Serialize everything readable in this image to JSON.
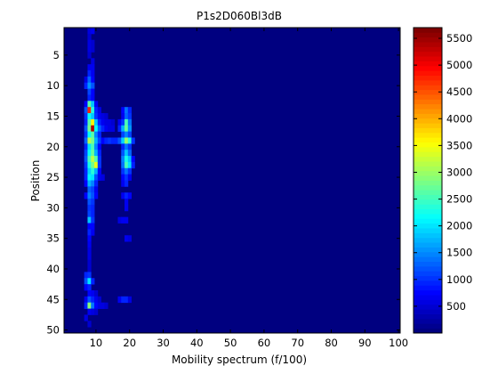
{
  "chart_data": {
    "type": "heatmap",
    "title": "P1s2D060Bl3dB",
    "xlabel": "Mobility spectrum (f/100)",
    "ylabel": "Position",
    "x_range": [
      1,
      100
    ],
    "y_range": [
      1,
      50
    ],
    "x_ticks": [
      10,
      20,
      30,
      40,
      50,
      60,
      70,
      80,
      90,
      100
    ],
    "y_ticks": [
      5,
      10,
      15,
      20,
      25,
      30,
      35,
      40,
      45,
      50
    ],
    "y_reversed": true,
    "colormap": "jet",
    "background_value": 60,
    "colorbar": {
      "range": [
        0,
        5700
      ],
      "ticks": [
        500,
        1000,
        1500,
        2000,
        2500,
        3000,
        3500,
        4000,
        4500,
        5000,
        5500
      ]
    },
    "cells": [
      [
        8,
        1,
        600
      ],
      [
        9,
        1,
        700
      ],
      [
        8,
        2,
        500
      ],
      [
        8,
        3,
        550
      ],
      [
        9,
        3,
        450
      ],
      [
        8,
        4,
        600
      ],
      [
        9,
        4,
        500
      ],
      [
        8,
        5,
        500
      ],
      [
        9,
        6,
        600
      ],
      [
        8,
        7,
        700
      ],
      [
        9,
        7,
        650
      ],
      [
        8,
        8,
        900
      ],
      [
        9,
        8,
        700
      ],
      [
        7,
        9,
        600
      ],
      [
        8,
        9,
        1300
      ],
      [
        9,
        9,
        800
      ],
      [
        7,
        10,
        900
      ],
      [
        8,
        10,
        1600
      ],
      [
        9,
        10,
        1200
      ],
      [
        8,
        11,
        1100
      ],
      [
        9,
        11,
        800
      ],
      [
        8,
        12,
        900
      ],
      [
        9,
        12,
        800
      ],
      [
        7,
        13,
        800
      ],
      [
        8,
        13,
        2600
      ],
      [
        9,
        13,
        1800
      ],
      [
        10,
        13,
        700
      ],
      [
        7,
        14,
        1200
      ],
      [
        8,
        14,
        4800
      ],
      [
        9,
        14,
        2400
      ],
      [
        10,
        14,
        900
      ],
      [
        11,
        14,
        600
      ],
      [
        18,
        14,
        800
      ],
      [
        19,
        14,
        1400
      ],
      [
        20,
        14,
        900
      ],
      [
        7,
        15,
        1000
      ],
      [
        8,
        15,
        2200
      ],
      [
        9,
        15,
        1800
      ],
      [
        10,
        15,
        1000
      ],
      [
        11,
        15,
        700
      ],
      [
        12,
        15,
        600
      ],
      [
        13,
        15,
        500
      ],
      [
        18,
        15,
        700
      ],
      [
        19,
        15,
        1300
      ],
      [
        20,
        15,
        1000
      ],
      [
        7,
        16,
        900
      ],
      [
        8,
        16,
        2600
      ],
      [
        9,
        16,
        3600
      ],
      [
        10,
        16,
        1800
      ],
      [
        11,
        16,
        900
      ],
      [
        12,
        16,
        700
      ],
      [
        13,
        16,
        600
      ],
      [
        14,
        16,
        600
      ],
      [
        15,
        16,
        500
      ],
      [
        17,
        16,
        700
      ],
      [
        18,
        16,
        1000
      ],
      [
        19,
        16,
        2500
      ],
      [
        20,
        16,
        1400
      ],
      [
        7,
        17,
        1200
      ],
      [
        8,
        17,
        2800
      ],
      [
        9,
        17,
        5400
      ],
      [
        10,
        17,
        2200
      ],
      [
        11,
        17,
        1300
      ],
      [
        12,
        17,
        900
      ],
      [
        13,
        17,
        700
      ],
      [
        14,
        17,
        600
      ],
      [
        15,
        17,
        600
      ],
      [
        17,
        17,
        900
      ],
      [
        18,
        17,
        1700
      ],
      [
        19,
        17,
        2700
      ],
      [
        20,
        17,
        1600
      ],
      [
        7,
        18,
        1000
      ],
      [
        8,
        18,
        2200
      ],
      [
        9,
        18,
        2600
      ],
      [
        10,
        18,
        1500
      ],
      [
        11,
        18,
        900
      ],
      [
        18,
        18,
        1100
      ],
      [
        19,
        18,
        1500
      ],
      [
        20,
        18,
        1100
      ],
      [
        7,
        19,
        1300
      ],
      [
        8,
        19,
        3200
      ],
      [
        9,
        19,
        2800
      ],
      [
        10,
        19,
        1700
      ],
      [
        11,
        19,
        1100
      ],
      [
        12,
        19,
        800
      ],
      [
        13,
        19,
        900
      ],
      [
        14,
        19,
        1000
      ],
      [
        15,
        19,
        900
      ],
      [
        16,
        19,
        900
      ],
      [
        17,
        19,
        1200
      ],
      [
        18,
        19,
        1900
      ],
      [
        19,
        19,
        3000
      ],
      [
        20,
        19,
        2400
      ],
      [
        21,
        19,
        1000
      ],
      [
        7,
        20,
        900
      ],
      [
        8,
        20,
        2000
      ],
      [
        9,
        20,
        2500
      ],
      [
        10,
        20,
        1500
      ],
      [
        11,
        20,
        800
      ],
      [
        18,
        20,
        900
      ],
      [
        19,
        20,
        1400
      ],
      [
        20,
        20,
        1000
      ],
      [
        7,
        21,
        1100
      ],
      [
        8,
        21,
        2200
      ],
      [
        9,
        21,
        2700
      ],
      [
        10,
        21,
        1700
      ],
      [
        11,
        21,
        900
      ],
      [
        18,
        21,
        1200
      ],
      [
        19,
        21,
        1800
      ],
      [
        20,
        21,
        1300
      ],
      [
        7,
        22,
        1200
      ],
      [
        8,
        22,
        2500
      ],
      [
        9,
        22,
        3200
      ],
      [
        10,
        22,
        2600
      ],
      [
        11,
        22,
        1000
      ],
      [
        18,
        22,
        1500
      ],
      [
        19,
        22,
        2300
      ],
      [
        20,
        22,
        1800
      ],
      [
        21,
        22,
        800
      ],
      [
        7,
        23,
        1000
      ],
      [
        8,
        23,
        2300
      ],
      [
        9,
        23,
        2800
      ],
      [
        10,
        23,
        3400
      ],
      [
        11,
        23,
        1000
      ],
      [
        18,
        23,
        1400
      ],
      [
        19,
        23,
        2500
      ],
      [
        20,
        23,
        2000
      ],
      [
        21,
        23,
        900
      ],
      [
        7,
        24,
        900
      ],
      [
        8,
        24,
        1900
      ],
      [
        9,
        24,
        2400
      ],
      [
        10,
        24,
        1700
      ],
      [
        11,
        24,
        800
      ],
      [
        18,
        24,
        1000
      ],
      [
        19,
        24,
        1400
      ],
      [
        20,
        24,
        1000
      ],
      [
        7,
        25,
        900
      ],
      [
        8,
        25,
        2100
      ],
      [
        9,
        25,
        2000
      ],
      [
        10,
        25,
        1200
      ],
      [
        11,
        25,
        700
      ],
      [
        12,
        25,
        600
      ],
      [
        18,
        25,
        800
      ],
      [
        19,
        25,
        1000
      ],
      [
        20,
        25,
        700
      ],
      [
        7,
        26,
        800
      ],
      [
        8,
        26,
        1700
      ],
      [
        9,
        26,
        1500
      ],
      [
        10,
        26,
        900
      ],
      [
        18,
        26,
        700
      ],
      [
        19,
        26,
        900
      ],
      [
        8,
        27,
        1300
      ],
      [
        9,
        27,
        1100
      ],
      [
        10,
        27,
        700
      ],
      [
        7,
        28,
        800
      ],
      [
        8,
        28,
        1500
      ],
      [
        9,
        28,
        1200
      ],
      [
        10,
        28,
        800
      ],
      [
        18,
        28,
        700
      ],
      [
        19,
        28,
        900
      ],
      [
        20,
        28,
        800
      ],
      [
        8,
        29,
        1200
      ],
      [
        9,
        29,
        1000
      ],
      [
        19,
        29,
        700
      ],
      [
        8,
        30,
        1000
      ],
      [
        9,
        30,
        900
      ],
      [
        19,
        30,
        700
      ],
      [
        8,
        31,
        1100
      ],
      [
        9,
        31,
        900
      ],
      [
        8,
        32,
        1800
      ],
      [
        9,
        32,
        1000
      ],
      [
        8,
        33,
        800
      ],
      [
        9,
        33,
        800
      ],
      [
        17,
        32,
        600
      ],
      [
        18,
        32,
        700
      ],
      [
        19,
        32,
        700
      ],
      [
        8,
        34,
        900
      ],
      [
        9,
        34,
        700
      ],
      [
        8,
        35,
        800
      ],
      [
        19,
        35,
        700
      ],
      [
        20,
        35,
        600
      ],
      [
        8,
        36,
        700
      ],
      [
        8,
        37,
        600
      ],
      [
        8,
        38,
        600
      ],
      [
        8,
        39,
        500
      ],
      [
        8,
        40,
        500
      ],
      [
        7,
        41,
        900
      ],
      [
        8,
        41,
        1000
      ],
      [
        7,
        42,
        1200
      ],
      [
        8,
        42,
        2000
      ],
      [
        9,
        42,
        900
      ],
      [
        7,
        43,
        800
      ],
      [
        8,
        43,
        900
      ],
      [
        8,
        44,
        800
      ],
      [
        9,
        44,
        700
      ],
      [
        10,
        44,
        500
      ],
      [
        7,
        45,
        700
      ],
      [
        8,
        45,
        1200
      ],
      [
        9,
        45,
        900
      ],
      [
        10,
        45,
        700
      ],
      [
        11,
        45,
        500
      ],
      [
        17,
        45,
        700
      ],
      [
        18,
        45,
        900
      ],
      [
        19,
        45,
        900
      ],
      [
        20,
        45,
        600
      ],
      [
        7,
        46,
        900
      ],
      [
        8,
        46,
        2900
      ],
      [
        9,
        46,
        1400
      ],
      [
        10,
        46,
        800
      ],
      [
        11,
        46,
        600
      ],
      [
        12,
        46,
        600
      ],
      [
        13,
        46,
        500
      ],
      [
        8,
        47,
        700
      ],
      [
        9,
        47,
        600
      ],
      [
        10,
        47,
        500
      ],
      [
        7,
        48,
        600
      ],
      [
        8,
        49,
        500
      ]
    ]
  }
}
